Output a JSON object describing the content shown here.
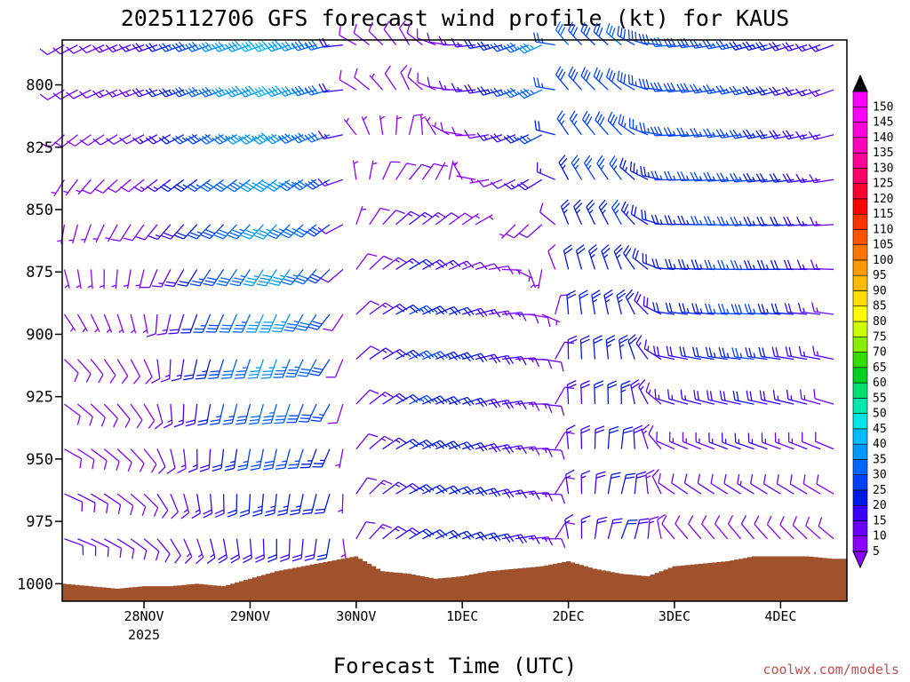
{
  "chart_data": {
    "type": "wind-barb time-height section",
    "title": "2025112706 GFS forecast wind profile (kt) for KAUS",
    "xlabel": "Forecast Time (UTC)",
    "ylabel": "",
    "credit": "coolwx.com/models",
    "units": "kt",
    "y_ticks": [
      800,
      825,
      850,
      875,
      900,
      925,
      950,
      975,
      1000
    ],
    "ylim": [
      1007,
      782
    ],
    "x_ticks": [
      {
        "label": "28NOV",
        "sub": "2025",
        "hour": 18
      },
      {
        "label": "29NOV",
        "sub": "",
        "hour": 42
      },
      {
        "label": "30NOV",
        "sub": "",
        "hour": 66
      },
      {
        "label": "1DEC",
        "sub": "",
        "hour": 90
      },
      {
        "label": "2DEC",
        "sub": "",
        "hour": 114
      },
      {
        "label": "3DEC",
        "sub": "",
        "hour": 138
      },
      {
        "label": "4DEC",
        "sub": "",
        "hour": 162
      }
    ],
    "xlim_hours": [
      -0.5,
      177
    ],
    "levels": [
      784,
      802,
      820,
      838,
      856,
      874,
      892,
      910,
      928,
      946,
      964,
      982
    ],
    "times_hours": [
      0,
      3,
      6,
      9,
      12,
      15,
      18,
      21,
      24,
      27,
      30,
      33,
      36,
      39,
      42,
      45,
      48,
      51,
      54,
      57,
      60,
      63,
      66,
      69,
      72,
      75,
      78,
      81,
      84,
      87,
      90,
      93,
      96,
      99,
      102,
      105,
      108,
      111,
      114,
      117,
      120,
      123,
      126,
      129,
      132,
      135,
      138,
      141,
      144,
      147,
      150,
      153,
      156,
      159,
      162,
      165,
      168,
      171,
      174
    ],
    "colorbar": {
      "levels": [
        5,
        10,
        15,
        20,
        25,
        30,
        35,
        40,
        45,
        50,
        55,
        60,
        65,
        70,
        75,
        80,
        85,
        90,
        95,
        100,
        105,
        110,
        115,
        120,
        125,
        130,
        135,
        140,
        145,
        150
      ],
      "colors": [
        "#8b00ff",
        "#6a00ff",
        "#3a00ff",
        "#0018e8",
        "#0042ff",
        "#0066ff",
        "#0099ff",
        "#00bbff",
        "#00e6e6",
        "#00e6b0",
        "#00e070",
        "#00d020",
        "#33dd00",
        "#88ee00",
        "#ccff00",
        "#ffff00",
        "#ffdd00",
        "#ffbb00",
        "#ff9900",
        "#ff7700",
        "#ff5500",
        "#ff3300",
        "#ff0000",
        "#ff0033",
        "#ff0066",
        "#ff0099",
        "#ff00bb",
        "#ff00dd",
        "#ff00ff",
        "#ff00ff"
      ]
    },
    "terrain": {
      "color": "#a0522d",
      "surface_pressure_hours": [
        0,
        12,
        18,
        24,
        30,
        36,
        42,
        48,
        54,
        60,
        66,
        72,
        78,
        84,
        90,
        96,
        102,
        108,
        114,
        120,
        126,
        132,
        138,
        144,
        150,
        156,
        162,
        168,
        174,
        177
      ],
      "surface_pressure_hpa": [
        1000,
        1002,
        1001,
        1001,
        1000,
        1001,
        998,
        995,
        993,
        991,
        989,
        995,
        996,
        998,
        997,
        995,
        994,
        993,
        991,
        994,
        996,
        997,
        993,
        992,
        991,
        989,
        989,
        989,
        990,
        990
      ]
    },
    "anchors": [
      {
        "t": 0,
        "p": 980,
        "dir": 110,
        "spd": 12
      },
      {
        "t": 0,
        "p": 900,
        "dir": 140,
        "spd": 8
      },
      {
        "t": 0,
        "p": 800,
        "dir": 240,
        "spd": 10
      },
      {
        "t": 18,
        "p": 980,
        "dir": 130,
        "spd": 10
      },
      {
        "t": 18,
        "p": 900,
        "dir": 160,
        "spd": 8
      },
      {
        "t": 18,
        "p": 800,
        "dir": 250,
        "spd": 15
      },
      {
        "t": 36,
        "p": 980,
        "dir": 170,
        "spd": 18
      },
      {
        "t": 36,
        "p": 900,
        "dir": 200,
        "spd": 30
      },
      {
        "t": 36,
        "p": 800,
        "dir": 250,
        "spd": 35
      },
      {
        "t": 48,
        "p": 980,
        "dir": 180,
        "spd": 20
      },
      {
        "t": 48,
        "p": 900,
        "dir": 200,
        "spd": 40
      },
      {
        "t": 48,
        "p": 800,
        "dir": 250,
        "spd": 42
      },
      {
        "t": 60,
        "p": 980,
        "dir": 190,
        "spd": 20
      },
      {
        "t": 60,
        "p": 900,
        "dir": 215,
        "spd": 30
      },
      {
        "t": 60,
        "p": 800,
        "dir": 255,
        "spd": 32
      },
      {
        "t": 66,
        "p": 980,
        "dir": 30,
        "spd": 10
      },
      {
        "t": 66,
        "p": 900,
        "dir": 50,
        "spd": 12
      },
      {
        "t": 66,
        "p": 800,
        "dir": 300,
        "spd": 8
      },
      {
        "t": 78,
        "p": 980,
        "dir": 60,
        "spd": 22
      },
      {
        "t": 78,
        "p": 900,
        "dir": 65,
        "spd": 28
      },
      {
        "t": 78,
        "p": 800,
        "dir": 330,
        "spd": 8
      },
      {
        "t": 96,
        "p": 980,
        "dir": 75,
        "spd": 20
      },
      {
        "t": 96,
        "p": 900,
        "dir": 80,
        "spd": 18
      },
      {
        "t": 96,
        "p": 800,
        "dir": 260,
        "spd": 20
      },
      {
        "t": 108,
        "p": 980,
        "dir": 90,
        "spd": 12
      },
      {
        "t": 108,
        "p": 900,
        "dir": 100,
        "spd": 10
      },
      {
        "t": 108,
        "p": 800,
        "dir": 245,
        "spd": 35
      },
      {
        "t": 114,
        "p": 980,
        "dir": 350,
        "spd": 15
      },
      {
        "t": 114,
        "p": 900,
        "dir": 0,
        "spd": 20
      },
      {
        "t": 114,
        "p": 800,
        "dir": 320,
        "spd": 30
      },
      {
        "t": 126,
        "p": 980,
        "dir": 20,
        "spd": 22
      },
      {
        "t": 126,
        "p": 900,
        "dir": 350,
        "spd": 25
      },
      {
        "t": 126,
        "p": 800,
        "dir": 310,
        "spd": 30
      },
      {
        "t": 138,
        "p": 980,
        "dir": 320,
        "spd": 8
      },
      {
        "t": 138,
        "p": 900,
        "dir": 280,
        "spd": 20
      },
      {
        "t": 138,
        "p": 800,
        "dir": 265,
        "spd": 30
      },
      {
        "t": 156,
        "p": 980,
        "dir": 320,
        "spd": 10
      },
      {
        "t": 156,
        "p": 900,
        "dir": 275,
        "spd": 28
      },
      {
        "t": 156,
        "p": 800,
        "dir": 255,
        "spd": 25
      },
      {
        "t": 174,
        "p": 980,
        "dir": 310,
        "spd": 8
      },
      {
        "t": 174,
        "p": 900,
        "dir": 280,
        "spd": 15
      },
      {
        "t": 174,
        "p": 800,
        "dir": 250,
        "spd": 15
      }
    ]
  }
}
